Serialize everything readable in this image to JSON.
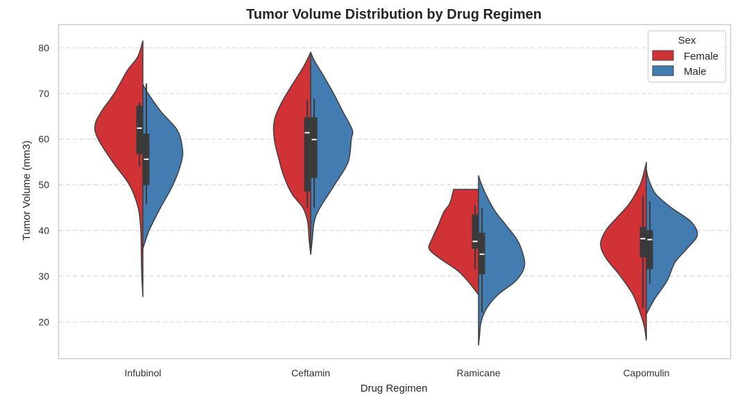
{
  "chart_data": {
    "type": "violin",
    "title": "Tumor Volume Distribution by Drug Regimen",
    "xlabel": "Drug Regimen",
    "ylabel": "Tumor Volume (mm3)",
    "ylim": [
      12,
      85
    ],
    "yticks": [
      20,
      30,
      40,
      50,
      60,
      70,
      80
    ],
    "grid": "y-dashed",
    "categories": [
      "Infubinol",
      "Ceftamin",
      "Ramicane",
      "Capomulin"
    ],
    "legend": {
      "title": "Sex",
      "position": "top-right",
      "entries": [
        "Female",
        "Male"
      ]
    },
    "colors": {
      "Female": "#d03235",
      "Male": "#437cb0",
      "outline": "#3f3f3f",
      "box": "#3a3a3a"
    },
    "split_violins": [
      {
        "category": "Infubinol",
        "Female": {
          "range": [
            25.5,
            81.5
          ],
          "quartiles": [
            56.7,
            62.4,
            67.3
          ],
          "whiskers": [
            54,
            68
          ],
          "density": [
            [
              25.5,
              0.0
            ],
            [
              30,
              0.02
            ],
            [
              35,
              0.03
            ],
            [
              40,
              0.04
            ],
            [
              45,
              0.09
            ],
            [
              50,
              0.26
            ],
            [
              55,
              0.58
            ],
            [
              60,
              0.86
            ],
            [
              63,
              0.92
            ],
            [
              66,
              0.8
            ],
            [
              70,
              0.55
            ],
            [
              75,
              0.3
            ],
            [
              78,
              0.1
            ],
            [
              81.5,
              0.0
            ]
          ]
        },
        "Male": {
          "range": [
            36,
            72
          ],
          "quartiles": [
            49.9,
            55.6,
            61.2
          ],
          "whiskers": [
            45.8,
            72.2
          ],
          "density": [
            [
              36,
              0.0
            ],
            [
              40,
              0.12
            ],
            [
              45,
              0.34
            ],
            [
              50,
              0.58
            ],
            [
              55,
              0.74
            ],
            [
              58,
              0.76
            ],
            [
              62,
              0.66
            ],
            [
              66,
              0.35
            ],
            [
              70,
              0.1
            ],
            [
              72,
              0.0
            ]
          ]
        }
      },
      {
        "category": "Ceftamin",
        "Female": {
          "range": [
            34.8,
            79
          ],
          "quartiles": [
            48.5,
            61.4,
            64.8
          ],
          "whiskers": [
            45,
            68.5
          ],
          "density": [
            [
              34.8,
              0.0
            ],
            [
              38,
              0.03
            ],
            [
              42,
              0.06
            ],
            [
              45,
              0.15
            ],
            [
              48,
              0.36
            ],
            [
              52,
              0.52
            ],
            [
              56,
              0.62
            ],
            [
              60,
              0.7
            ],
            [
              64,
              0.7
            ],
            [
              68,
              0.56
            ],
            [
              72,
              0.35
            ],
            [
              76,
              0.13
            ],
            [
              79,
              0.0
            ]
          ]
        },
        "Male": {
          "range": [
            34.8,
            79
          ],
          "quartiles": [
            51.5,
            59.9,
            64.8
          ],
          "whiskers": [
            45,
            68.8
          ],
          "density": [
            [
              34.8,
              0.0
            ],
            [
              38,
              0.03
            ],
            [
              42,
              0.07
            ],
            [
              45,
              0.18
            ],
            [
              50,
              0.46
            ],
            [
              55,
              0.72
            ],
            [
              60,
              0.78
            ],
            [
              62,
              0.8
            ],
            [
              66,
              0.62
            ],
            [
              70,
              0.44
            ],
            [
              74,
              0.24
            ],
            [
              77,
              0.08
            ],
            [
              79,
              0.0
            ]
          ]
        }
      },
      {
        "category": "Ramicane",
        "Female": {
          "range": [
            25.9,
            49
          ],
          "quartiles": [
            36,
            37.6,
            43.5
          ],
          "whiskers": [
            31.5,
            45.5
          ],
          "density": [
            [
              25.9,
              0.0
            ],
            [
              28,
              0.14
            ],
            [
              31,
              0.38
            ],
            [
              34,
              0.76
            ],
            [
              36,
              0.95
            ],
            [
              38,
              0.9
            ],
            [
              41,
              0.78
            ],
            [
              44,
              0.67
            ],
            [
              46,
              0.55
            ],
            [
              49,
              0.48
            ]
          ]
        },
        "Male": {
          "range": [
            14.9,
            52
          ],
          "quartiles": [
            30.4,
            34.8,
            39.5
          ],
          "whiskers": [
            22,
            45
          ],
          "density": [
            [
              14.9,
              0.0
            ],
            [
              17,
              0.02
            ],
            [
              20,
              0.05
            ],
            [
              23,
              0.16
            ],
            [
              26,
              0.38
            ],
            [
              29,
              0.72
            ],
            [
              32,
              0.88
            ],
            [
              35,
              0.85
            ],
            [
              38,
              0.74
            ],
            [
              41,
              0.54
            ],
            [
              44,
              0.33
            ],
            [
              47,
              0.18
            ],
            [
              50,
              0.06
            ],
            [
              52,
              0.0
            ]
          ]
        }
      },
      {
        "category": "Capomulin",
        "Female": {
          "range": [
            16,
            54.9
          ],
          "quartiles": [
            34.1,
            38.2,
            40.8
          ],
          "whiskers": [
            23,
            47.6
          ],
          "density": [
            [
              16,
              0.0
            ],
            [
              19,
              0.04
            ],
            [
              22,
              0.12
            ],
            [
              26,
              0.26
            ],
            [
              30,
              0.5
            ],
            [
              34,
              0.78
            ],
            [
              37,
              0.88
            ],
            [
              40,
              0.78
            ],
            [
              43,
              0.55
            ],
            [
              46,
              0.32
            ],
            [
              50,
              0.12
            ],
            [
              53,
              0.04
            ],
            [
              54.9,
              0.0
            ]
          ]
        },
        "Male": {
          "range": [
            21.7,
            53.3
          ],
          "quartiles": [
            31.5,
            38,
            40.1
          ],
          "whiskers": [
            28.4,
            46.4
          ],
          "density": [
            [
              21.7,
              0.0
            ],
            [
              25,
              0.16
            ],
            [
              29,
              0.4
            ],
            [
              33,
              0.55
            ],
            [
              36,
              0.78
            ],
            [
              39,
              0.98
            ],
            [
              42,
              0.85
            ],
            [
              45,
              0.48
            ],
            [
              48,
              0.18
            ],
            [
              51,
              0.05
            ],
            [
              53.3,
              0.0
            ]
          ]
        }
      }
    ]
  }
}
